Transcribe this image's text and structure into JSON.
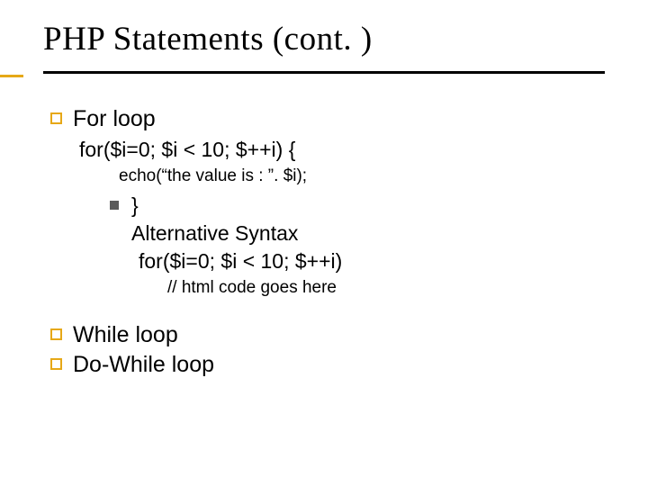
{
  "title": "PHP Statements (cont. )",
  "colors": {
    "accent": "#e6a817",
    "sub_bullet": "#5a5a5a",
    "text": "#000000",
    "background": "#ffffff",
    "rule": "#000000"
  },
  "typography": {
    "title_family": "Times New Roman",
    "title_size_pt": 28,
    "body_family": "Verdana",
    "lvl1_size_pt": 19,
    "lvl2_size_pt": 17,
    "lvl3_size_pt": 14
  },
  "items": {
    "for_loop": {
      "label": "For loop",
      "code_line": "for($i=0; $i < 10; $++i) {",
      "echo_line": "echo(“the value is : ”. $i);",
      "close_brace": "}",
      "alt_label": "Alternative Syntax",
      "alt_code": "for($i=0; $i < 10; $++i)",
      "alt_comment": "// html code goes here"
    },
    "while_loop": {
      "label": "While loop"
    },
    "do_while_loop": {
      "label": "Do-While loop"
    }
  }
}
